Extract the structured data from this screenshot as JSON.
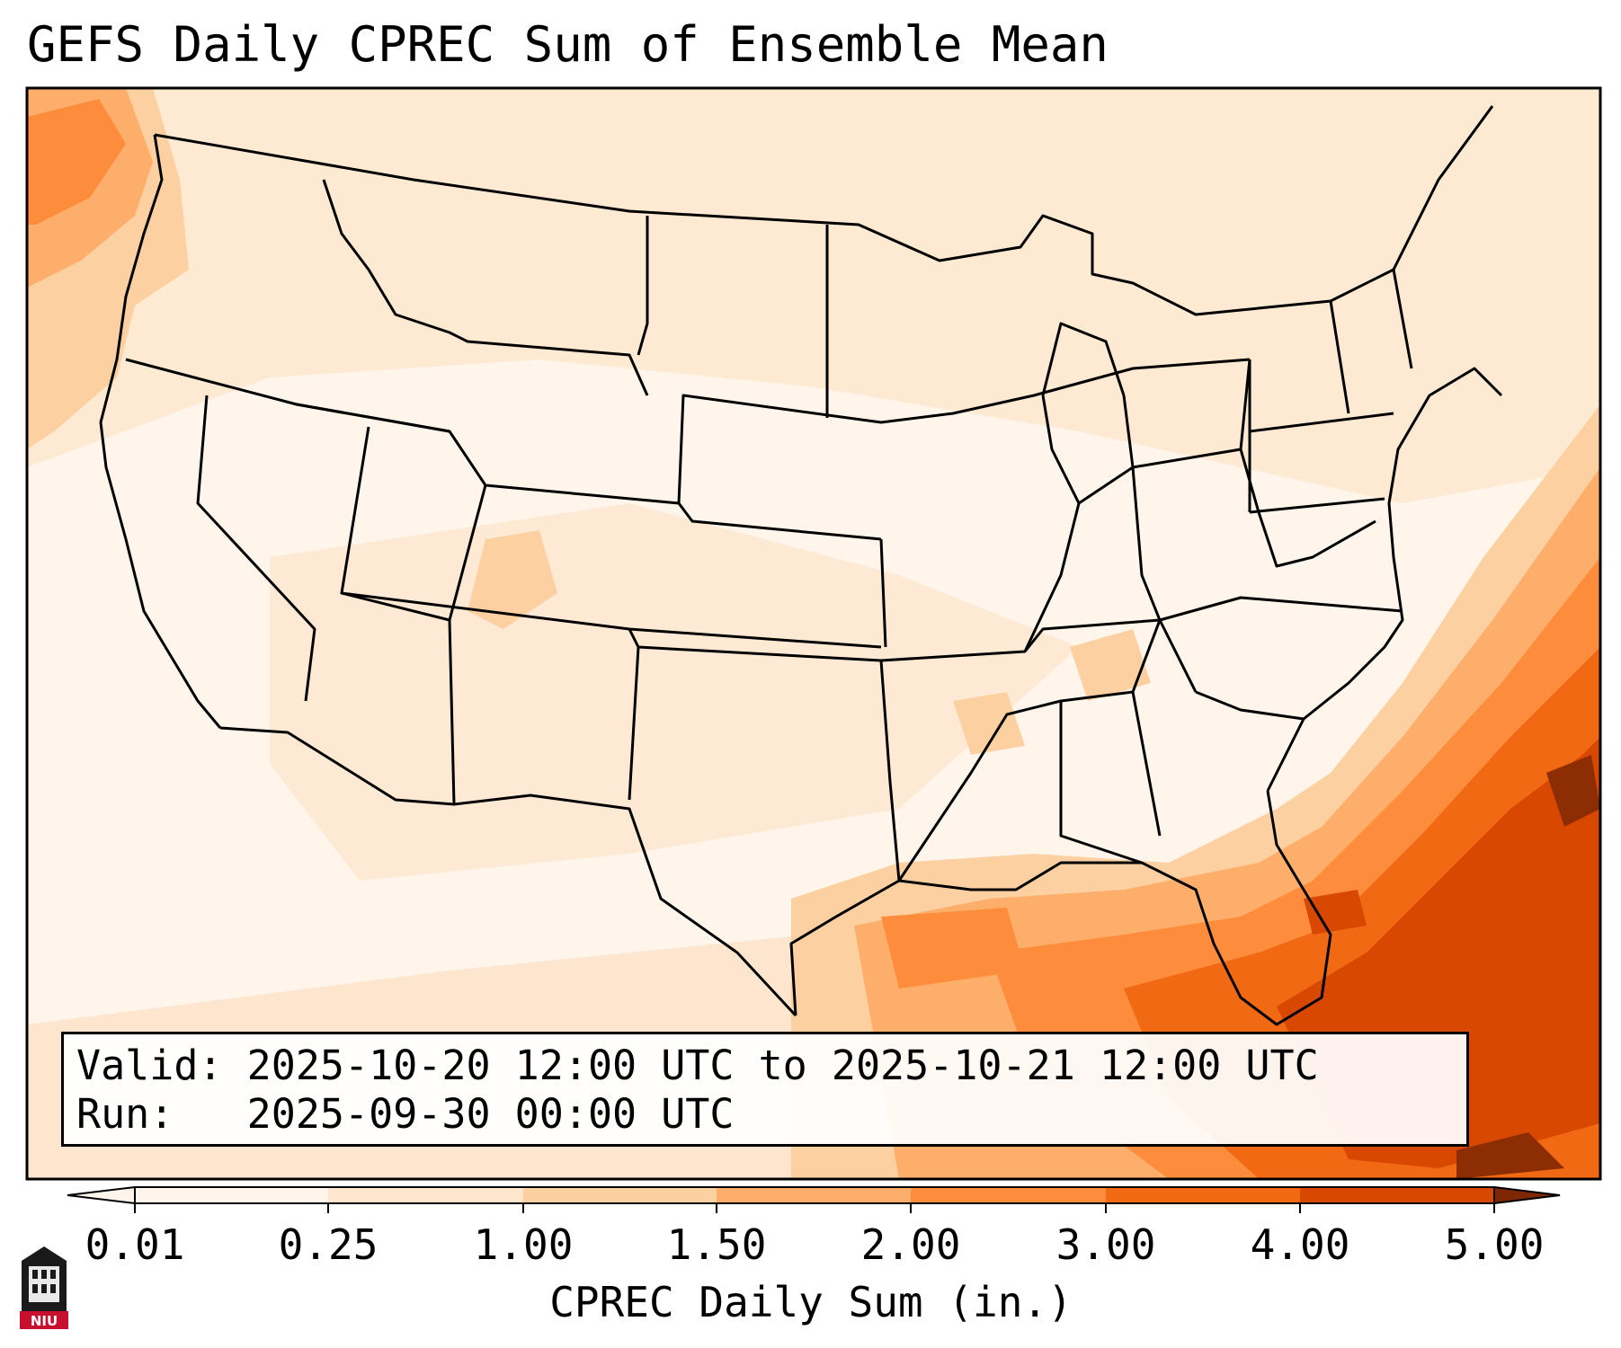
{
  "title": "GEFS Daily CPREC Sum of Ensemble Mean",
  "validity": {
    "valid_line": "Valid: 2025-10-20 12:00 UTC to 2025-10-21 12:00 UTC",
    "run_line": "Run:   2025-09-30 00:00 UTC"
  },
  "colorbar": {
    "label": "CPREC Daily Sum (in.)",
    "ticks": [
      "0.01",
      "0.25",
      "1.00",
      "1.50",
      "2.00",
      "3.00",
      "4.00",
      "5.00"
    ],
    "colors": [
      "#fff5eb",
      "#fee6ce",
      "#fdd0a2",
      "#fdae6b",
      "#fd8d3c",
      "#f16913",
      "#d94801",
      "#8c2d04"
    ],
    "under_color": "#fff5eb",
    "over_color": "#7f2704"
  },
  "logo": {
    "text": "NIU",
    "color": "#c8102e"
  }
}
